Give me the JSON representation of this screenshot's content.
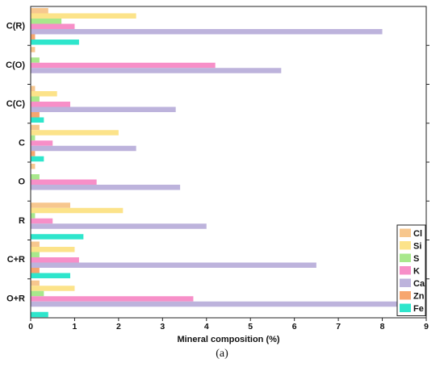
{
  "chart_data": {
    "type": "bar",
    "orientation": "horizontal",
    "categories": [
      "C(R)",
      "C(O)",
      "C(C)",
      "C",
      "O",
      "R",
      "C+R",
      "O+R"
    ],
    "series": [
      {
        "name": "Cl",
        "color": "#F7C78E",
        "values": [
          0.4,
          0.1,
          0.1,
          0.2,
          0.1,
          0.9,
          0.2,
          0.2
        ]
      },
      {
        "name": "Si",
        "color": "#FCE38A",
        "values": [
          2.4,
          0.0,
          0.6,
          2.0,
          0.0,
          2.1,
          1.0,
          1.0
        ]
      },
      {
        "name": "S",
        "color": "#A8E88C",
        "values": [
          0.7,
          0.2,
          0.2,
          0.1,
          0.2,
          0.1,
          0.2,
          0.3
        ]
      },
      {
        "name": "K",
        "color": "#F78FC8",
        "values": [
          1.0,
          4.2,
          0.9,
          0.5,
          1.5,
          0.5,
          1.1,
          3.7
        ]
      },
      {
        "name": "Ca",
        "color": "#BDB3DC",
        "values": [
          8.0,
          5.7,
          3.3,
          2.4,
          3.4,
          4.0,
          6.5,
          8.4
        ]
      },
      {
        "name": "Zn",
        "color": "#F7A66F",
        "values": [
          0.1,
          0.0,
          0.2,
          0.1,
          0.0,
          0.0,
          0.2,
          0.0
        ]
      },
      {
        "name": "Fe",
        "color": "#2EE6CC",
        "values": [
          1.1,
          0.0,
          0.3,
          0.3,
          0.0,
          1.2,
          0.9,
          0.4
        ]
      }
    ],
    "xlabel": "Mineral composition (%)",
    "ylabel": "",
    "xlim": [
      0,
      9
    ],
    "xticks": [
      "0",
      "1",
      "2",
      "3",
      "4",
      "5",
      "6",
      "7",
      "8",
      "9"
    ],
    "legend_position": "bottom-right",
    "grid": false
  },
  "caption": "(a)"
}
